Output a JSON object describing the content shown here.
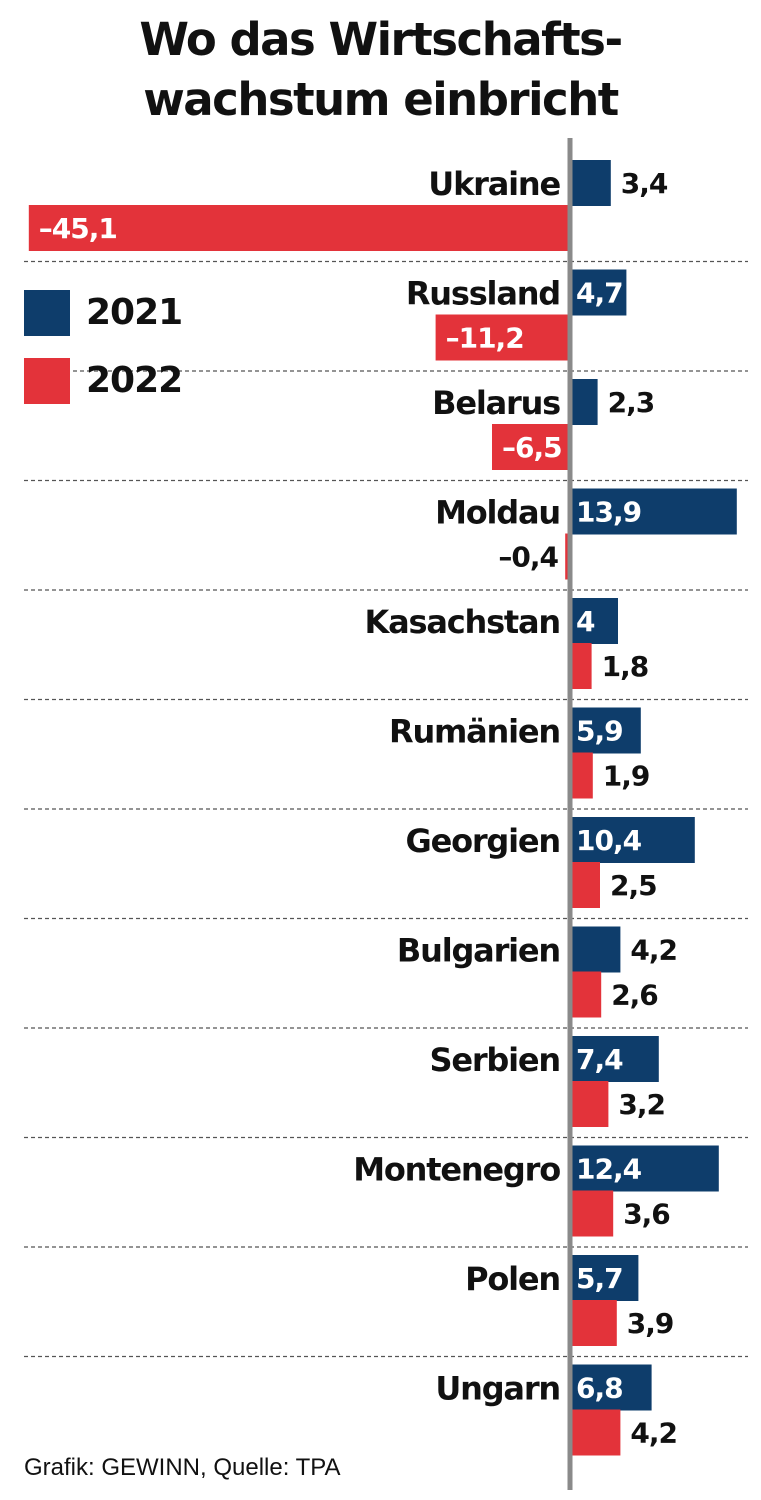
{
  "chart_data": {
    "type": "bar",
    "title_lines": [
      "Wo das Wirtschafts-",
      "wachstum einbricht"
    ],
    "categories": [
      "Ukraine",
      "Russland",
      "Belarus",
      "Moldau",
      "Kasachstan",
      "Rumänien",
      "Georgien",
      "Bulgarien",
      "Serbien",
      "Montenegro",
      "Polen",
      "Ungarn"
    ],
    "series": [
      {
        "name": "2021",
        "color": "#0e3d6b",
        "values": [
          3.4,
          4.7,
          2.3,
          13.9,
          4,
          5.9,
          10.4,
          4.2,
          7.4,
          12.4,
          5.7,
          6.8
        ],
        "labels": [
          "3,4",
          "4,7",
          "2,3",
          "13,9",
          "4",
          "5,9",
          "10,4",
          "4,2",
          "7,4",
          "12,4",
          "5,7",
          "6,8"
        ]
      },
      {
        "name": "2022",
        "color": "#e3333a",
        "values": [
          -45.1,
          -11.2,
          -6.5,
          -0.4,
          1.8,
          1.9,
          2.5,
          2.6,
          3.2,
          3.6,
          3.9,
          4.2
        ],
        "labels": [
          "–45,1",
          "–11,2",
          "–6,5",
          "–0,4",
          "1,8",
          "1,9",
          "2,5",
          "2,6",
          "3,2",
          "3,6",
          "3,9",
          "4,2"
        ]
      }
    ],
    "orientation": "horizontal",
    "axis_color": "#8a8a8a",
    "grid": "dashed separators between countries",
    "legend_placement": "left",
    "source": "Grafik: GEWINN, Quelle: TPA"
  }
}
